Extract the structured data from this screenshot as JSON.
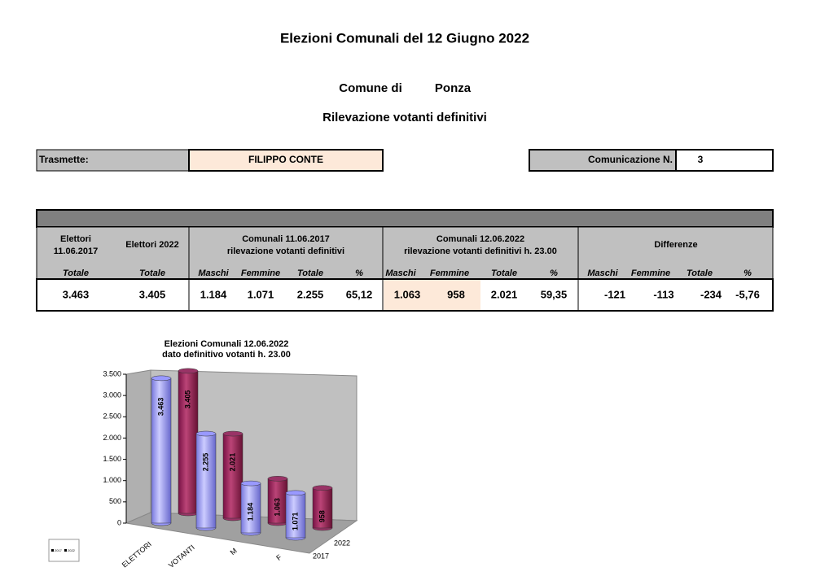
{
  "header": {
    "title": "Elezioni Comunali del 12 Giugno 2022",
    "comune_label": "Comune di",
    "comune": "Ponza",
    "subtitle": "Rilevazione votanti definitivi"
  },
  "sender": {
    "label": "Trasmette:",
    "name": "FILIPPO CONTE"
  },
  "communication": {
    "label": "Comunicazione N.",
    "number": 3
  },
  "table": {
    "groups": [
      [
        "Elettori",
        "11.06.2017"
      ],
      [
        "Elettori  2022"
      ],
      [
        "Comunali 11.06.2017",
        "rilevazione votanti definitivi"
      ],
      [
        "Comunali 12.06.2022",
        "rilevazione votanti definitivi h. 23.00"
      ],
      [
        "Differenze"
      ]
    ],
    "subheaders": [
      "Totale",
      "Totale",
      "Maschi",
      "Femmine",
      "Totale",
      "%",
      "Maschi",
      "Femmine",
      "Totale",
      "%",
      "Maschi",
      "Femmine",
      "Totale",
      "%"
    ],
    "row": [
      "3.463",
      "3.405",
      "1.184",
      "1.071",
      "2.255",
      "65,12",
      "1.063",
      "958",
      "2.021",
      "59,35",
      "-121",
      "-113",
      "-234",
      "-5,76"
    ]
  },
  "chart_data": {
    "type": "bar",
    "title": [
      "Elezioni Comunali 12.06.2022",
      "dato definitivo votanti h. 23.00"
    ],
    "categories": [
      "ELETTORI",
      "VOTANTI",
      "M",
      "F"
    ],
    "series": [
      {
        "name": "2017",
        "color": "#9999ff",
        "values": [
          3463,
          2255,
          1184,
          1071
        ],
        "value_labels": [
          "3.463",
          "2.255",
          "1.184",
          "1.071"
        ]
      },
      {
        "name": "2022",
        "color": "#993366",
        "values": [
          3405,
          2021,
          1063,
          958
        ],
        "value_labels": [
          "3.405",
          "2.021",
          "1.063",
          "958"
        ]
      }
    ],
    "ylim": [
      0,
      3500
    ],
    "yticks": [
      0,
      500,
      {
        "value": 1000,
        "label": "1.000"
      },
      {
        "value": 1500,
        "label": "1.500"
      },
      {
        "value": 2000,
        "label": "2.000"
      },
      {
        "value": 2500,
        "label": "2.500"
      },
      {
        "value": 3000,
        "label": "3.000"
      },
      {
        "value": 3500,
        "label": "3.500"
      }
    ]
  }
}
